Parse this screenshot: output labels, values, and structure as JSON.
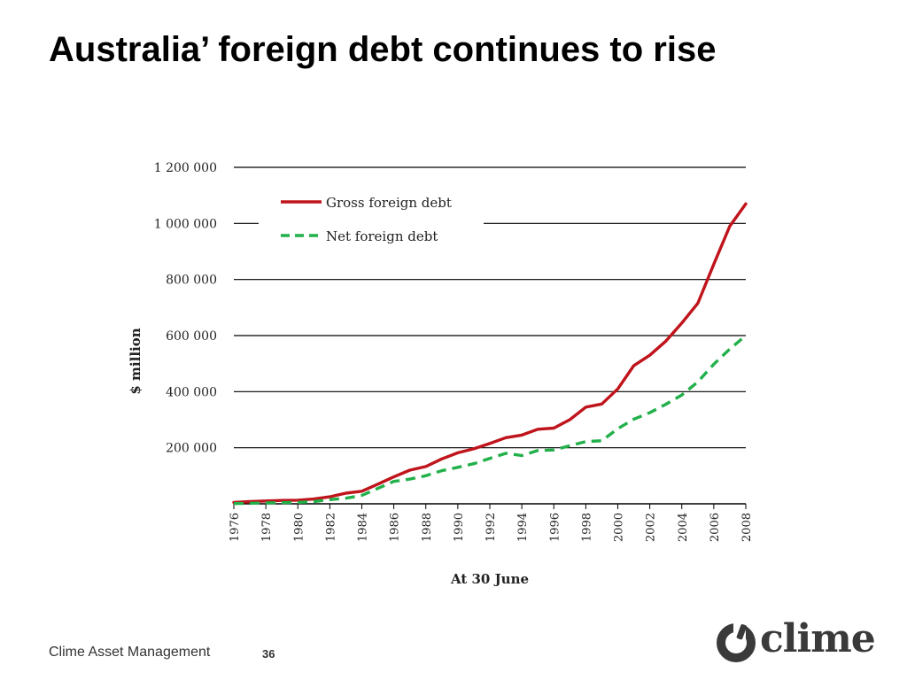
{
  "slide": {
    "title": "Australia’ foreign debt continues to rise",
    "footer": "Clime Asset Management",
    "page_number": "36",
    "logo_text": "clime"
  },
  "chart_data": {
    "type": "line",
    "x": [
      1976,
      1977,
      1978,
      1979,
      1980,
      1981,
      1982,
      1983,
      1984,
      1985,
      1986,
      1987,
      1988,
      1989,
      1990,
      1991,
      1992,
      1993,
      1994,
      1995,
      1996,
      1997,
      1998,
      1999,
      2000,
      2001,
      2002,
      2003,
      2004,
      2005,
      2006,
      2007,
      2008
    ],
    "series": [
      {
        "name": "Gross foreign debt",
        "color": "#c0141c",
        "style": "solid",
        "values": [
          5000,
          8000,
          10000,
          12000,
          13000,
          17000,
          25000,
          38000,
          45000,
          70000,
          96000,
          120000,
          133000,
          160000,
          182000,
          196000,
          215000,
          236000,
          245000,
          266000,
          270000,
          300000,
          345000,
          356000,
          410000,
          493000,
          530000,
          580000,
          645000,
          715000,
          855000,
          990000,
          1070000
        ]
      },
      {
        "name": "Net foreign debt",
        "color": "#22b04a",
        "style": "dashed",
        "values": [
          1000,
          2000,
          3000,
          4000,
          5000,
          8000,
          15000,
          20000,
          30000,
          55000,
          80000,
          88000,
          100000,
          118000,
          130000,
          143000,
          162000,
          180000,
          172000,
          190000,
          192000,
          207000,
          222000,
          225000,
          268000,
          302000,
          325000,
          355000,
          388000,
          435000,
          498000,
          552000,
          600000
        ]
      }
    ],
    "xlabel": "At 30 June",
    "ylabel": "$ million",
    "ylim": [
      0,
      1200000
    ],
    "yticks": [
      200000,
      400000,
      600000,
      800000,
      1000000,
      1200000
    ],
    "ytick_labels": [
      "200 000",
      "400 000",
      "600 000",
      "800 000",
      "1 000 000",
      "1 200 000"
    ],
    "xticks": [
      1976,
      1978,
      1980,
      1982,
      1984,
      1986,
      1988,
      1990,
      1992,
      1994,
      1996,
      1998,
      2000,
      2002,
      2004,
      2006,
      2008
    ],
    "grid": true,
    "legend_position": "top-left"
  }
}
